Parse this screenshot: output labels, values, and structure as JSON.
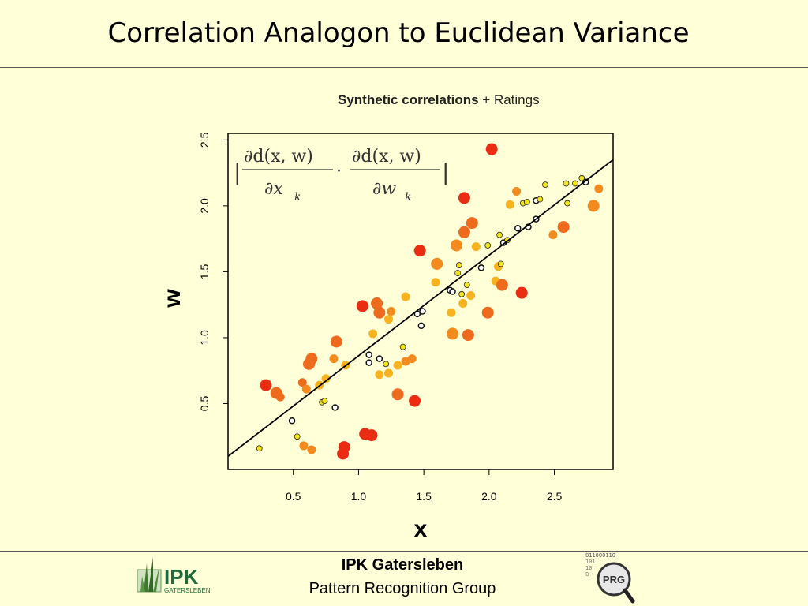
{
  "slide": {
    "title": "Correlation Analogon to Euclidean Variance"
  },
  "footer": {
    "institute": "IPK Gatersleben",
    "group": "Pattern Recognition Group",
    "ipk_logo_text": "IPK",
    "ipk_logo_sub": "GATERSLEBEN",
    "prg_logo_text": "PRG",
    "prg_binary": "011000110"
  },
  "chart_data": {
    "type": "scatter",
    "title_bold": "Synthetic correlations",
    "title_rest": "+ Ratings",
    "xlabel": "x",
    "ylabel": "w",
    "xlim": [
      0.0,
      2.95
    ],
    "ylim": [
      0.0,
      2.55
    ],
    "xticks": [
      "0.5",
      "1.0",
      "1.5",
      "2.0",
      "2.5"
    ],
    "yticks": [
      "0.5",
      "1.0",
      "1.5",
      "2.0",
      "2.5"
    ],
    "xtick_values": [
      0.5,
      1.0,
      1.5,
      2.0,
      2.5
    ],
    "ytick_values": [
      0.5,
      1.0,
      1.5,
      2.0,
      2.5
    ],
    "grid": false,
    "fit_line": {
      "x": [
        0.0,
        2.95
      ],
      "y": [
        0.1,
        2.35
      ]
    },
    "formula": {
      "num1": "∂d(x, w)",
      "den1": "∂x",
      "sub1": "k",
      "num2": "∂d(x, w)",
      "den2": "∂w",
      "sub2": "k"
    },
    "colors": {
      "black": "#111111",
      "yellow": "#f2e31c",
      "lightorange": "#f7b21e",
      "orange": "#f28a1e",
      "darkorange": "#ee6a1c",
      "red": "#ea2c12"
    },
    "points": [
      {
        "x": 0.24,
        "y": 0.16,
        "c": "yellow",
        "s": 1
      },
      {
        "x": 0.29,
        "y": 0.64,
        "c": "red",
        "s": 3
      },
      {
        "x": 0.37,
        "y": 0.58,
        "c": "darkorange",
        "s": 3
      },
      {
        "x": 0.4,
        "y": 0.55,
        "c": "darkorange",
        "s": 2
      },
      {
        "x": 0.49,
        "y": 0.37,
        "c": "black",
        "s": 1
      },
      {
        "x": 0.53,
        "y": 0.25,
        "c": "yellow",
        "s": 1
      },
      {
        "x": 0.57,
        "y": 0.66,
        "c": "darkorange",
        "s": 2
      },
      {
        "x": 0.58,
        "y": 0.18,
        "c": "orange",
        "s": 2
      },
      {
        "x": 0.6,
        "y": 0.61,
        "c": "orange",
        "s": 2
      },
      {
        "x": 0.62,
        "y": 0.8,
        "c": "darkorange",
        "s": 3
      },
      {
        "x": 0.64,
        "y": 0.84,
        "c": "darkorange",
        "s": 3
      },
      {
        "x": 0.64,
        "y": 0.15,
        "c": "orange",
        "s": 2
      },
      {
        "x": 0.7,
        "y": 0.64,
        "c": "lightorange",
        "s": 2
      },
      {
        "x": 0.72,
        "y": 0.51,
        "c": "yellow",
        "s": 1
      },
      {
        "x": 0.74,
        "y": 0.52,
        "c": "yellow",
        "s": 1
      },
      {
        "x": 0.75,
        "y": 0.69,
        "c": "lightorange",
        "s": 2
      },
      {
        "x": 0.81,
        "y": 0.84,
        "c": "orange",
        "s": 2
      },
      {
        "x": 0.82,
        "y": 0.47,
        "c": "black",
        "s": 1
      },
      {
        "x": 0.83,
        "y": 0.97,
        "c": "darkorange",
        "s": 3
      },
      {
        "x": 0.88,
        "y": 0.12,
        "c": "red",
        "s": 3
      },
      {
        "x": 0.89,
        "y": 0.17,
        "c": "red",
        "s": 3
      },
      {
        "x": 0.9,
        "y": 0.79,
        "c": "lightorange",
        "s": 2
      },
      {
        "x": 1.03,
        "y": 1.24,
        "c": "red",
        "s": 3
      },
      {
        "x": 1.05,
        "y": 0.27,
        "c": "red",
        "s": 3
      },
      {
        "x": 1.08,
        "y": 0.81,
        "c": "black",
        "s": 1
      },
      {
        "x": 1.08,
        "y": 0.87,
        "c": "black",
        "s": 1
      },
      {
        "x": 1.1,
        "y": 0.26,
        "c": "red",
        "s": 3
      },
      {
        "x": 1.11,
        "y": 1.03,
        "c": "lightorange",
        "s": 2
      },
      {
        "x": 1.14,
        "y": 1.26,
        "c": "darkorange",
        "s": 3
      },
      {
        "x": 1.16,
        "y": 1.19,
        "c": "darkorange",
        "s": 3
      },
      {
        "x": 1.16,
        "y": 0.72,
        "c": "lightorange",
        "s": 2
      },
      {
        "x": 1.16,
        "y": 0.84,
        "c": "black",
        "s": 1
      },
      {
        "x": 1.21,
        "y": 0.8,
        "c": "yellow",
        "s": 1
      },
      {
        "x": 1.23,
        "y": 1.14,
        "c": "lightorange",
        "s": 2
      },
      {
        "x": 1.23,
        "y": 0.73,
        "c": "lightorange",
        "s": 2
      },
      {
        "x": 1.25,
        "y": 1.2,
        "c": "orange",
        "s": 2
      },
      {
        "x": 1.3,
        "y": 0.57,
        "c": "darkorange",
        "s": 3
      },
      {
        "x": 1.3,
        "y": 0.79,
        "c": "lightorange",
        "s": 2
      },
      {
        "x": 1.34,
        "y": 0.93,
        "c": "yellow",
        "s": 1
      },
      {
        "x": 1.36,
        "y": 1.31,
        "c": "lightorange",
        "s": 2
      },
      {
        "x": 1.36,
        "y": 0.82,
        "c": "orange",
        "s": 2
      },
      {
        "x": 1.41,
        "y": 0.84,
        "c": "orange",
        "s": 2
      },
      {
        "x": 1.43,
        "y": 0.52,
        "c": "red",
        "s": 3
      },
      {
        "x": 1.45,
        "y": 1.18,
        "c": "black",
        "s": 1
      },
      {
        "x": 1.47,
        "y": 1.66,
        "c": "red",
        "s": 3
      },
      {
        "x": 1.48,
        "y": 1.09,
        "c": "black",
        "s": 1
      },
      {
        "x": 1.49,
        "y": 1.2,
        "c": "black",
        "s": 1
      },
      {
        "x": 1.59,
        "y": 1.42,
        "c": "lightorange",
        "s": 2
      },
      {
        "x": 1.6,
        "y": 1.56,
        "c": "orange",
        "s": 3
      },
      {
        "x": 1.7,
        "y": 1.36,
        "c": "black",
        "s": 1
      },
      {
        "x": 1.71,
        "y": 1.19,
        "c": "lightorange",
        "s": 2
      },
      {
        "x": 1.72,
        "y": 1.03,
        "c": "orange",
        "s": 3
      },
      {
        "x": 1.72,
        "y": 1.35,
        "c": "black",
        "s": 1
      },
      {
        "x": 1.75,
        "y": 1.7,
        "c": "orange",
        "s": 3
      },
      {
        "x": 1.76,
        "y": 1.49,
        "c": "yellow",
        "s": 1
      },
      {
        "x": 1.77,
        "y": 1.55,
        "c": "yellow",
        "s": 1
      },
      {
        "x": 1.79,
        "y": 1.33,
        "c": "yellow",
        "s": 1
      },
      {
        "x": 1.8,
        "y": 1.26,
        "c": "lightorange",
        "s": 2
      },
      {
        "x": 1.81,
        "y": 2.06,
        "c": "red",
        "s": 3
      },
      {
        "x": 1.81,
        "y": 1.8,
        "c": "darkorange",
        "s": 3
      },
      {
        "x": 1.83,
        "y": 1.4,
        "c": "yellow",
        "s": 1
      },
      {
        "x": 1.84,
        "y": 1.02,
        "c": "darkorange",
        "s": 3
      },
      {
        "x": 1.86,
        "y": 1.32,
        "c": "lightorange",
        "s": 2
      },
      {
        "x": 1.87,
        "y": 1.87,
        "c": "darkorange",
        "s": 3
      },
      {
        "x": 1.9,
        "y": 1.69,
        "c": "lightorange",
        "s": 2
      },
      {
        "x": 1.94,
        "y": 1.53,
        "c": "black",
        "s": 1
      },
      {
        "x": 1.99,
        "y": 1.19,
        "c": "darkorange",
        "s": 3
      },
      {
        "x": 1.99,
        "y": 1.7,
        "c": "yellow",
        "s": 1
      },
      {
        "x": 2.02,
        "y": 2.43,
        "c": "red",
        "s": 3
      },
      {
        "x": 2.05,
        "y": 1.43,
        "c": "lightorange",
        "s": 2
      },
      {
        "x": 2.07,
        "y": 1.54,
        "c": "lightorange",
        "s": 2
      },
      {
        "x": 2.08,
        "y": 1.78,
        "c": "yellow",
        "s": 1
      },
      {
        "x": 2.09,
        "y": 1.56,
        "c": "yellow",
        "s": 1
      },
      {
        "x": 2.1,
        "y": 1.4,
        "c": "darkorange",
        "s": 3
      },
      {
        "x": 2.11,
        "y": 1.72,
        "c": "black",
        "s": 1
      },
      {
        "x": 2.14,
        "y": 1.74,
        "c": "yellow",
        "s": 1
      },
      {
        "x": 2.16,
        "y": 2.01,
        "c": "lightorange",
        "s": 2
      },
      {
        "x": 2.21,
        "y": 2.11,
        "c": "orange",
        "s": 2
      },
      {
        "x": 2.22,
        "y": 1.83,
        "c": "black",
        "s": 1
      },
      {
        "x": 2.25,
        "y": 1.34,
        "c": "red",
        "s": 3
      },
      {
        "x": 2.26,
        "y": 2.02,
        "c": "yellow",
        "s": 1
      },
      {
        "x": 2.29,
        "y": 2.03,
        "c": "yellow",
        "s": 1
      },
      {
        "x": 2.3,
        "y": 1.84,
        "c": "black",
        "s": 1
      },
      {
        "x": 2.36,
        "y": 1.9,
        "c": "black",
        "s": 1
      },
      {
        "x": 2.36,
        "y": 2.04,
        "c": "black",
        "s": 1
      },
      {
        "x": 2.39,
        "y": 2.05,
        "c": "yellow",
        "s": 1
      },
      {
        "x": 2.43,
        "y": 2.16,
        "c": "yellow",
        "s": 1
      },
      {
        "x": 2.49,
        "y": 1.78,
        "c": "orange",
        "s": 2
      },
      {
        "x": 2.57,
        "y": 1.84,
        "c": "darkorange",
        "s": 3
      },
      {
        "x": 2.59,
        "y": 2.17,
        "c": "yellow",
        "s": 1
      },
      {
        "x": 2.6,
        "y": 2.02,
        "c": "yellow",
        "s": 1
      },
      {
        "x": 2.66,
        "y": 2.17,
        "c": "yellow",
        "s": 1
      },
      {
        "x": 2.71,
        "y": 2.21,
        "c": "yellow",
        "s": 1
      },
      {
        "x": 2.74,
        "y": 2.18,
        "c": "black",
        "s": 1
      },
      {
        "x": 2.8,
        "y": 2.0,
        "c": "orange",
        "s": 3
      },
      {
        "x": 2.84,
        "y": 2.13,
        "c": "orange",
        "s": 2
      }
    ]
  }
}
